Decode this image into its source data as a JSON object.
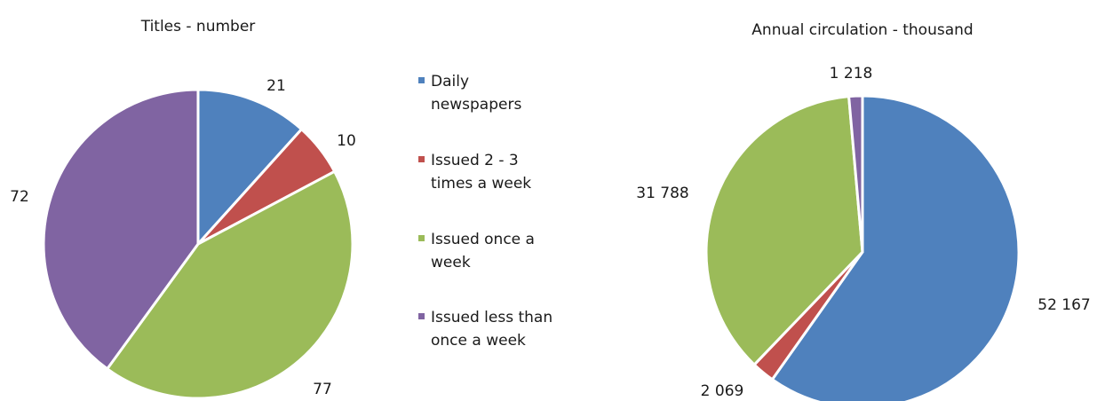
{
  "colors": {
    "daily": "#4F81BD",
    "two_three": "#C0504D",
    "once": "#9BBB59",
    "less": "#8064A2"
  },
  "legend": {
    "items": [
      {
        "key": "daily",
        "lines": [
          "Daily",
          "newspapers"
        ]
      },
      {
        "key": "two_three",
        "lines": [
          "Issued 2 - 3",
          "times a week"
        ]
      },
      {
        "key": "once",
        "lines": [
          "Issued once a",
          "week"
        ]
      },
      {
        "key": "less",
        "lines": [
          "Issued less than",
          "once a week"
        ]
      }
    ]
  },
  "chart_data": [
    {
      "type": "pie",
      "title": "Titles - number",
      "categories": [
        "Daily newspapers",
        "Issued 2 - 3 times a week",
        "Issued once a week",
        "Issued less than once a week"
      ],
      "values": [
        21,
        10,
        77,
        72
      ],
      "labels": [
        "21",
        "10",
        "77",
        "72"
      ]
    },
    {
      "type": "pie",
      "title": "Annual circulation - thousand",
      "categories": [
        "Daily newspapers",
        "Issued 2 - 3 times a week",
        "Issued once a week",
        "Issued less than once a week"
      ],
      "values": [
        52167,
        2069,
        31788,
        1218
      ],
      "labels": [
        "52 167",
        "2 069",
        "31 788",
        "1 218"
      ]
    }
  ]
}
